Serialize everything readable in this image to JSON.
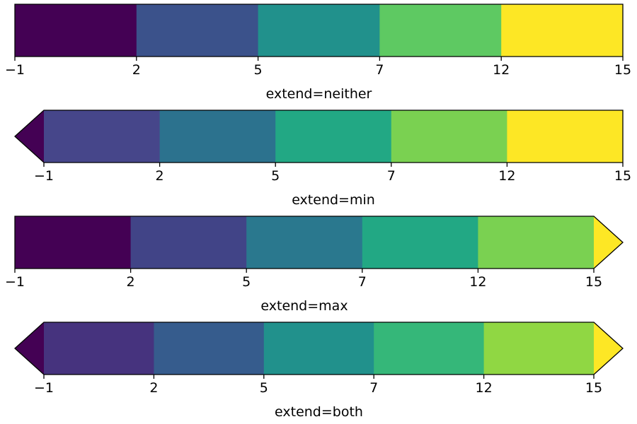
{
  "chart_data": [
    {
      "type": "colorbar",
      "extend": "neither",
      "boundaries": [
        -1,
        2,
        5,
        7,
        12,
        15
      ],
      "tick_labels": [
        "−1",
        "2",
        "5",
        "7",
        "12",
        "15"
      ],
      "segment_colors": [
        "#440154",
        "#3b528b",
        "#21918c",
        "#5ec962",
        "#fde725"
      ],
      "min_extension_color": null,
      "max_extension_color": null,
      "xlabel": "extend=neither"
    },
    {
      "type": "colorbar",
      "extend": "min",
      "boundaries": [
        -1,
        2,
        5,
        7,
        12,
        15
      ],
      "tick_labels": [
        "−1",
        "2",
        "5",
        "7",
        "12",
        "15"
      ],
      "segment_colors": [
        "#46468a",
        "#2c728e",
        "#22a884",
        "#7ad151",
        "#fde725"
      ],
      "min_extension_color": "#440154",
      "max_extension_color": null,
      "xlabel": "extend=min"
    },
    {
      "type": "colorbar",
      "extend": "max",
      "boundaries": [
        -1,
        2,
        5,
        7,
        12,
        15
      ],
      "tick_labels": [
        "−1",
        "2",
        "5",
        "7",
        "12",
        "15"
      ],
      "segment_colors": [
        "#440154",
        "#414487",
        "#2a788e",
        "#22a884",
        "#7ad151"
      ],
      "min_extension_color": null,
      "max_extension_color": "#fde725",
      "xlabel": "extend=max"
    },
    {
      "type": "colorbar",
      "extend": "both",
      "boundaries": [
        -1,
        2,
        5,
        7,
        12,
        15
      ],
      "tick_labels": [
        "−1",
        "2",
        "5",
        "7",
        "12",
        "15"
      ],
      "segment_colors": [
        "#46337e",
        "#365c8d",
        "#21918c",
        "#35b779",
        "#90d743"
      ],
      "min_extension_color": "#440154",
      "max_extension_color": "#fde725",
      "xlabel": "extend=both"
    }
  ]
}
